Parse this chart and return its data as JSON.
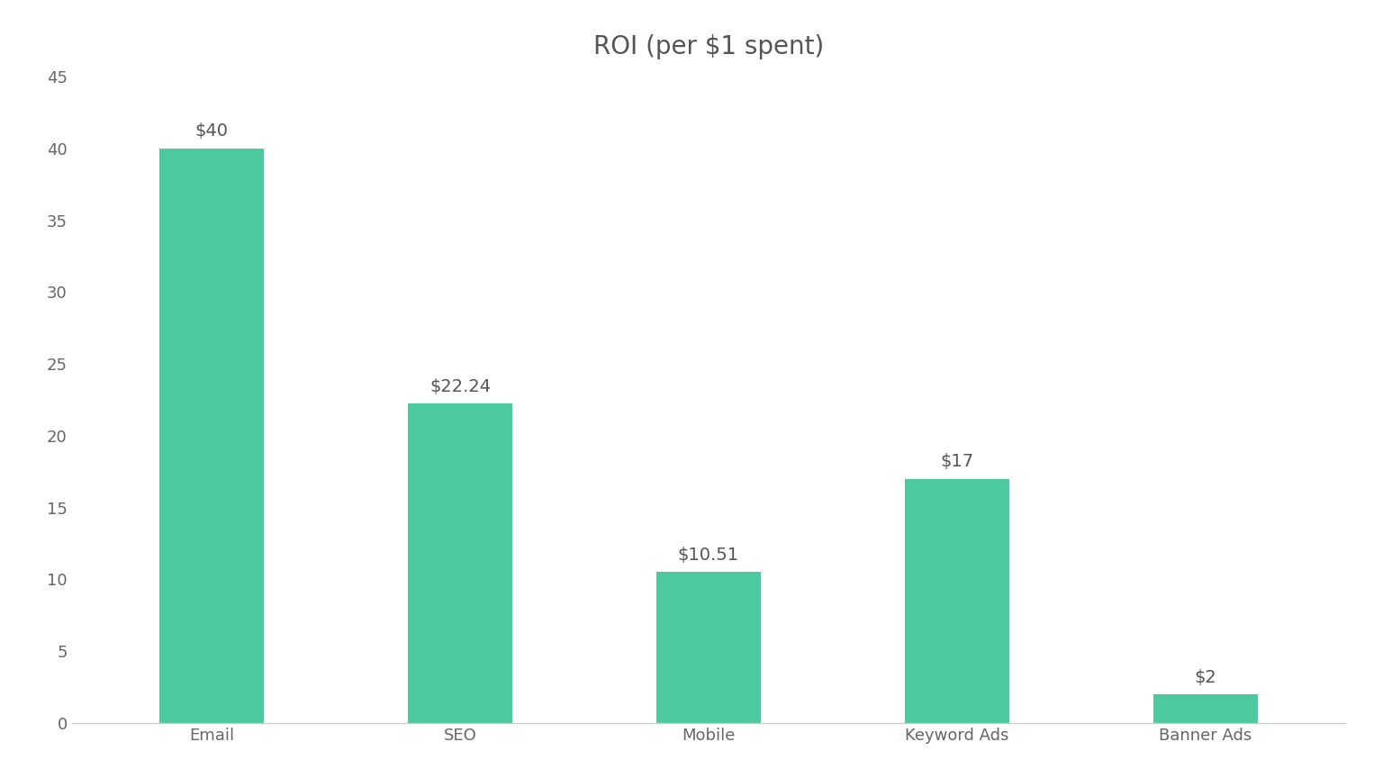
{
  "title": "ROI (per $1 spent)",
  "categories": [
    "Email",
    "SEO",
    "Mobile",
    "Keyword Ads",
    "Banner Ads"
  ],
  "values": [
    40,
    22.24,
    10.51,
    17,
    2
  ],
  "labels": [
    "$40",
    "$22.24",
    "$10.51",
    "$17",
    "$2"
  ],
  "bar_color": "#4DC9A0",
  "background_color": "#ffffff",
  "ylim": [
    0,
    45
  ],
  "yticks": [
    0,
    5,
    10,
    15,
    20,
    25,
    30,
    35,
    40,
    45
  ],
  "title_fontsize": 20,
  "tick_fontsize": 13,
  "label_fontsize": 14,
  "title_color": "#555555",
  "tick_color": "#666666",
  "label_color": "#555555",
  "bar_width": 0.42
}
